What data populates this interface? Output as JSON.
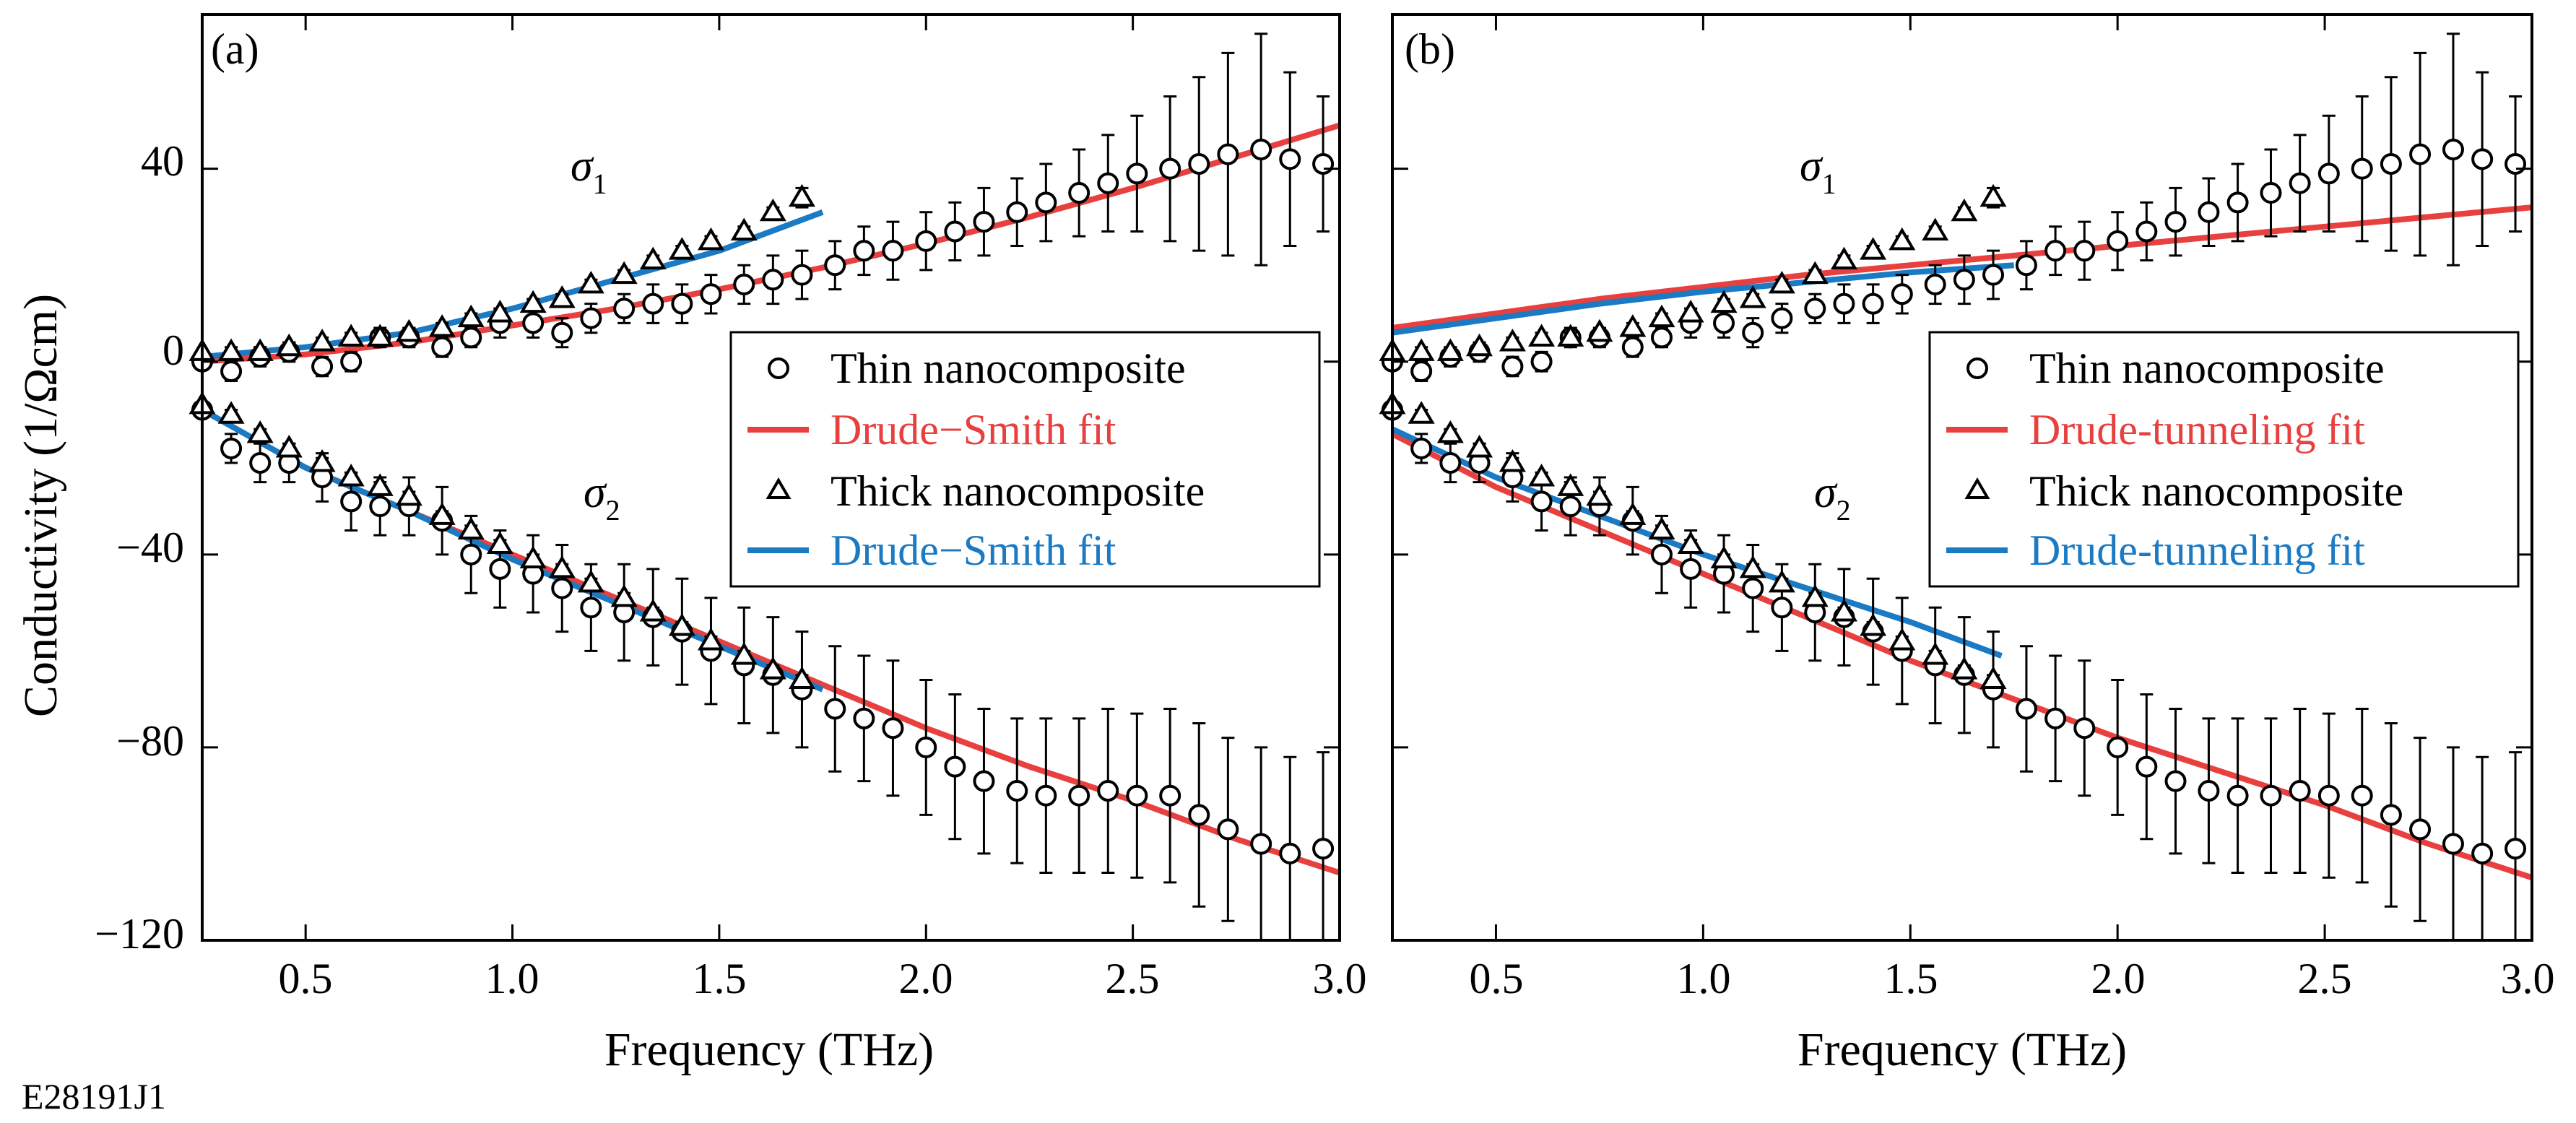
{
  "figure_code": "E28191J1",
  "colors": {
    "red": "#e8403f",
    "blue": "#1a7ac4",
    "black": "#000000"
  },
  "shared": {
    "xlabel": "Frequency (THz)",
    "ylabel": "Conductivity (1/Ωcm)",
    "x_ticks": [
      "0.5",
      "1.0",
      "1.5",
      "2.0",
      "2.5",
      "3.0"
    ],
    "y_ticks": [
      "40",
      "0",
      "−40",
      "−80",
      "−120"
    ]
  },
  "panels": [
    {
      "label": "(a)",
      "sigma1": "σ",
      "sigma1_sub": "1",
      "sigma2": "σ",
      "sigma2_sub": "2",
      "legend": [
        "Thin nanocomposite",
        "Drude−Smith fit",
        "Thick nanocomposite",
        "Drude−Smith fit"
      ]
    },
    {
      "label": "(b)",
      "sigma1": "σ",
      "sigma1_sub": "1",
      "sigma2": "σ",
      "sigma2_sub": "2",
      "legend": [
        "Thin nanocomposite",
        "Drude-tunneling fit",
        "Thick nanocomposite",
        "Drude-tunneling fit"
      ]
    }
  ],
  "chart_data": [
    {
      "type": "scatter",
      "panel": "(a)",
      "xlabel": "Frequency (THz)",
      "ylabel": "Conductivity (1/Ωcm)",
      "xlim": [
        0.25,
        3.0
      ],
      "ylim": [
        -120,
        72
      ],
      "series": [
        {
          "name": "Thin nanocomposite σ1",
          "marker": "circle",
          "x": [
            0.25,
            0.32,
            0.39,
            0.46,
            0.54,
            0.61,
            0.68,
            0.75,
            0.83,
            0.9,
            0.97,
            1.05,
            1.12,
            1.19,
            1.27,
            1.34,
            1.41,
            1.48,
            1.56,
            1.63,
            1.7,
            1.78,
            1.85,
            1.92,
            2.0,
            2.07,
            2.14,
            2.22,
            2.29,
            2.37,
            2.44,
            2.51,
            2.59,
            2.66,
            2.73,
            2.81,
            2.88,
            2.96
          ],
          "y": [
            0,
            -2,
            1,
            2,
            -1,
            0,
            5,
            5,
            3,
            5,
            8,
            8,
            6,
            9,
            11,
            12,
            12,
            14,
            16,
            17,
            18,
            20,
            23,
            23,
            25,
            27,
            29,
            31,
            33,
            35,
            37,
            39,
            40,
            41,
            43,
            44,
            42,
            41
          ],
          "err": [
            0,
            2,
            2,
            2,
            2,
            2,
            2,
            2,
            2,
            2,
            3,
            3,
            3,
            3,
            3,
            4,
            4,
            4,
            4,
            5,
            5,
            5,
            5,
            6,
            6,
            6,
            7,
            7,
            8,
            9,
            10,
            12,
            15,
            18,
            21,
            24,
            18,
            14
          ]
        },
        {
          "name": "Thin nanocomposite σ2",
          "marker": "circle",
          "x": [
            0.25,
            0.32,
            0.39,
            0.46,
            0.54,
            0.61,
            0.68,
            0.75,
            0.83,
            0.9,
            0.97,
            1.05,
            1.12,
            1.19,
            1.27,
            1.34,
            1.41,
            1.48,
            1.56,
            1.63,
            1.7,
            1.78,
            1.85,
            1.92,
            2.0,
            2.07,
            2.14,
            2.22,
            2.29,
            2.37,
            2.44,
            2.51,
            2.59,
            2.66,
            2.73,
            2.81,
            2.88,
            2.96
          ],
          "y": [
            -10,
            -18,
            -21,
            -21,
            -24,
            -29,
            -30,
            -30,
            -33,
            -40,
            -43,
            -44,
            -47,
            -51,
            -52,
            -53,
            -56,
            -60,
            -63,
            -65,
            -68,
            -72,
            -74,
            -76,
            -80,
            -84,
            -87,
            -89,
            -90,
            -90,
            -89,
            -90,
            -90,
            -94,
            -97,
            -100,
            -102,
            -101
          ],
          "err": [
            1,
            3,
            4,
            4,
            5,
            6,
            6,
            6,
            7,
            8,
            8,
            8,
            9,
            9,
            10,
            10,
            11,
            11,
            12,
            12,
            12,
            13,
            13,
            14,
            14,
            15,
            15,
            15,
            16,
            16,
            17,
            17,
            18,
            19,
            19,
            20,
            20,
            20
          ]
        },
        {
          "name": "Thick nanocomposite σ1",
          "marker": "triangle",
          "x": [
            0.25,
            0.32,
            0.39,
            0.46,
            0.54,
            0.61,
            0.68,
            0.75,
            0.83,
            0.9,
            0.97,
            1.05,
            1.12,
            1.19,
            1.27,
            1.34,
            1.41,
            1.48,
            1.56,
            1.63,
            1.7
          ],
          "y": [
            2,
            2,
            2,
            3,
            4,
            5,
            5,
            6,
            7,
            9,
            10,
            12,
            13,
            16,
            18,
            21,
            23,
            25,
            27,
            31,
            34
          ],
          "err": [
            0,
            1,
            1,
            1,
            1,
            1,
            1,
            1,
            1,
            1,
            1,
            1,
            1,
            1,
            1,
            1,
            1,
            1,
            1,
            1,
            2
          ]
        },
        {
          "name": "Thick nanocomposite σ2",
          "marker": "triangle",
          "x": [
            0.25,
            0.32,
            0.39,
            0.46,
            0.54,
            0.61,
            0.68,
            0.75,
            0.83,
            0.9,
            0.97,
            1.05,
            1.12,
            1.19,
            1.27,
            1.34,
            1.41,
            1.48,
            1.56,
            1.63,
            1.7
          ],
          "y": [
            -9,
            -11,
            -15,
            -18,
            -21,
            -24,
            -26,
            -28,
            -32,
            -35,
            -38,
            -41,
            -43,
            -46,
            -49,
            -52,
            -55,
            -58,
            -61,
            -64,
            -66
          ],
          "err": [
            0,
            1,
            1,
            1,
            1,
            1,
            1,
            1,
            1,
            1,
            1,
            1,
            1,
            1,
            1,
            1,
            1,
            1,
            1,
            1,
            1
          ]
        },
        {
          "name": "Drude−Smith fit (thin σ1)",
          "line": "red",
          "x": [
            0.25,
            0.5,
            0.75,
            1.0,
            1.25,
            1.5,
            1.75,
            2.0,
            2.25,
            2.5,
            2.75,
            3.0
          ],
          "y": [
            0,
            1.5,
            4,
            7.5,
            11,
            15,
            19.5,
            24.5,
            30,
            36,
            42.5,
            49
          ]
        },
        {
          "name": "Drude−Smith fit (thin σ2)",
          "line": "red",
          "x": [
            0.25,
            0.5,
            0.75,
            1.0,
            1.25,
            1.5,
            1.75,
            2.0,
            2.25,
            2.5,
            2.75,
            3.0
          ],
          "y": [
            -10,
            -22,
            -31,
            -40,
            -49,
            -58,
            -67,
            -76,
            -84,
            -91,
            -99,
            -106
          ]
        },
        {
          "name": "Drude−Smith fit (thick σ1)",
          "line": "blue",
          "x": [
            0.25,
            0.5,
            0.75,
            1.0,
            1.25,
            1.5,
            1.75
          ],
          "y": [
            1,
            3,
            6,
            11,
            17,
            23,
            31
          ]
        },
        {
          "name": "Drude−Smith fit (thick σ2)",
          "line": "blue",
          "x": [
            0.25,
            0.5,
            0.75,
            1.0,
            1.25,
            1.5,
            1.75
          ],
          "y": [
            -10,
            -22,
            -31,
            -41,
            -50,
            -59,
            -68
          ]
        }
      ]
    },
    {
      "type": "scatter",
      "panel": "(b)",
      "xlabel": "Frequency (THz)",
      "ylabel": "",
      "xlim": [
        0.25,
        3.0
      ],
      "ylim": [
        -120,
        72
      ],
      "series": [
        {
          "name": "Thin nanocomposite σ1",
          "marker": "circle",
          "x": [
            0.25,
            0.32,
            0.39,
            0.46,
            0.54,
            0.61,
            0.68,
            0.75,
            0.83,
            0.9,
            0.97,
            1.05,
            1.12,
            1.19,
            1.27,
            1.34,
            1.41,
            1.48,
            1.56,
            1.63,
            1.7,
            1.78,
            1.85,
            1.92,
            2.0,
            2.07,
            2.14,
            2.22,
            2.29,
            2.37,
            2.44,
            2.51,
            2.59,
            2.66,
            2.73,
            2.81,
            2.88,
            2.96
          ],
          "y": [
            0,
            -2,
            1,
            2,
            -1,
            0,
            5,
            5,
            3,
            5,
            8,
            8,
            6,
            9,
            11,
            12,
            12,
            14,
            16,
            17,
            18,
            20,
            23,
            23,
            25,
            27,
            29,
            31,
            33,
            35,
            37,
            39,
            40,
            41,
            43,
            44,
            42,
            41
          ],
          "err": [
            0,
            2,
            2,
            2,
            2,
            2,
            2,
            2,
            2,
            2,
            3,
            3,
            3,
            3,
            3,
            4,
            4,
            4,
            4,
            5,
            5,
            5,
            5,
            6,
            6,
            6,
            7,
            7,
            8,
            9,
            10,
            12,
            15,
            18,
            21,
            24,
            18,
            14
          ]
        },
        {
          "name": "Thin nanocomposite σ2",
          "marker": "circle",
          "x": [
            0.25,
            0.32,
            0.39,
            0.46,
            0.54,
            0.61,
            0.68,
            0.75,
            0.83,
            0.9,
            0.97,
            1.05,
            1.12,
            1.19,
            1.27,
            1.34,
            1.41,
            1.48,
            1.56,
            1.63,
            1.7,
            1.78,
            1.85,
            1.92,
            2.0,
            2.07,
            2.14,
            2.22,
            2.29,
            2.37,
            2.44,
            2.51,
            2.59,
            2.66,
            2.73,
            2.81,
            2.88,
            2.96
          ],
          "y": [
            -10,
            -18,
            -21,
            -21,
            -24,
            -29,
            -30,
            -30,
            -33,
            -40,
            -43,
            -44,
            -47,
            -51,
            -52,
            -53,
            -56,
            -60,
            -63,
            -65,
            -68,
            -72,
            -74,
            -76,
            -80,
            -84,
            -87,
            -89,
            -90,
            -90,
            -89,
            -90,
            -90,
            -94,
            -97,
            -100,
            -102,
            -101
          ],
          "err": [
            1,
            3,
            4,
            4,
            5,
            6,
            6,
            6,
            7,
            8,
            8,
            8,
            9,
            9,
            10,
            10,
            11,
            11,
            12,
            12,
            12,
            13,
            13,
            14,
            14,
            15,
            15,
            15,
            16,
            16,
            17,
            17,
            18,
            19,
            19,
            20,
            20,
            20
          ]
        },
        {
          "name": "Thick nanocomposite σ1",
          "marker": "triangle",
          "x": [
            0.25,
            0.32,
            0.39,
            0.46,
            0.54,
            0.61,
            0.68,
            0.75,
            0.83,
            0.9,
            0.97,
            1.05,
            1.12,
            1.19,
            1.27,
            1.34,
            1.41,
            1.48,
            1.56,
            1.63,
            1.7
          ],
          "y": [
            2,
            2,
            2,
            3,
            4,
            5,
            5,
            6,
            7,
            9,
            10,
            12,
            13,
            16,
            18,
            21,
            23,
            25,
            27,
            31,
            34
          ],
          "err": [
            0,
            1,
            1,
            1,
            1,
            1,
            1,
            1,
            1,
            1,
            1,
            1,
            1,
            1,
            1,
            1,
            1,
            1,
            1,
            1,
            2
          ]
        },
        {
          "name": "Thick nanocomposite σ2",
          "marker": "triangle",
          "x": [
            0.25,
            0.32,
            0.39,
            0.46,
            0.54,
            0.61,
            0.68,
            0.75,
            0.83,
            0.9,
            0.97,
            1.05,
            1.12,
            1.19,
            1.27,
            1.34,
            1.41,
            1.48,
            1.56,
            1.63,
            1.7
          ],
          "y": [
            -9,
            -11,
            -15,
            -18,
            -21,
            -24,
            -26,
            -28,
            -32,
            -35,
            -38,
            -41,
            -43,
            -46,
            -49,
            -52,
            -55,
            -58,
            -61,
            -64,
            -66
          ],
          "err": [
            0,
            1,
            1,
            1,
            1,
            1,
            1,
            1,
            1,
            1,
            1,
            1,
            1,
            1,
            1,
            1,
            1,
            1,
            1,
            1,
            1
          ]
        },
        {
          "name": "Drude-tunneling fit (thin σ1)",
          "line": "red",
          "x": [
            0.25,
            0.5,
            0.75,
            1.0,
            1.25,
            1.5,
            1.75,
            2.0,
            2.25,
            2.5,
            2.75,
            3.0
          ],
          "y": [
            7,
            10,
            13,
            15.5,
            18,
            20,
            22,
            24,
            26,
            28,
            30,
            32
          ]
        },
        {
          "name": "Drude-tunneling fit (thin σ2)",
          "line": "red",
          "x": [
            0.25,
            0.5,
            0.75,
            1.0,
            1.25,
            1.5,
            1.75,
            2.0,
            2.25,
            2.5,
            2.75,
            3.0
          ],
          "y": [
            -15,
            -26,
            -35,
            -44,
            -53,
            -62,
            -70,
            -78,
            -85,
            -92,
            -100,
            -107
          ]
        },
        {
          "name": "Drude-tunneling fit (thick σ1)",
          "line": "blue",
          "x": [
            0.25,
            0.5,
            0.75,
            1.0,
            1.25,
            1.5,
            1.75
          ],
          "y": [
            6,
            9,
            12,
            14.5,
            16.5,
            18.5,
            20
          ]
        },
        {
          "name": "Drude-tunneling fit (thick σ2)",
          "line": "blue",
          "x": [
            0.25,
            0.5,
            0.75,
            1.0,
            1.25,
            1.5,
            1.72
          ],
          "y": [
            -14,
            -24,
            -32,
            -40,
            -47,
            -54,
            -61
          ]
        }
      ]
    }
  ]
}
